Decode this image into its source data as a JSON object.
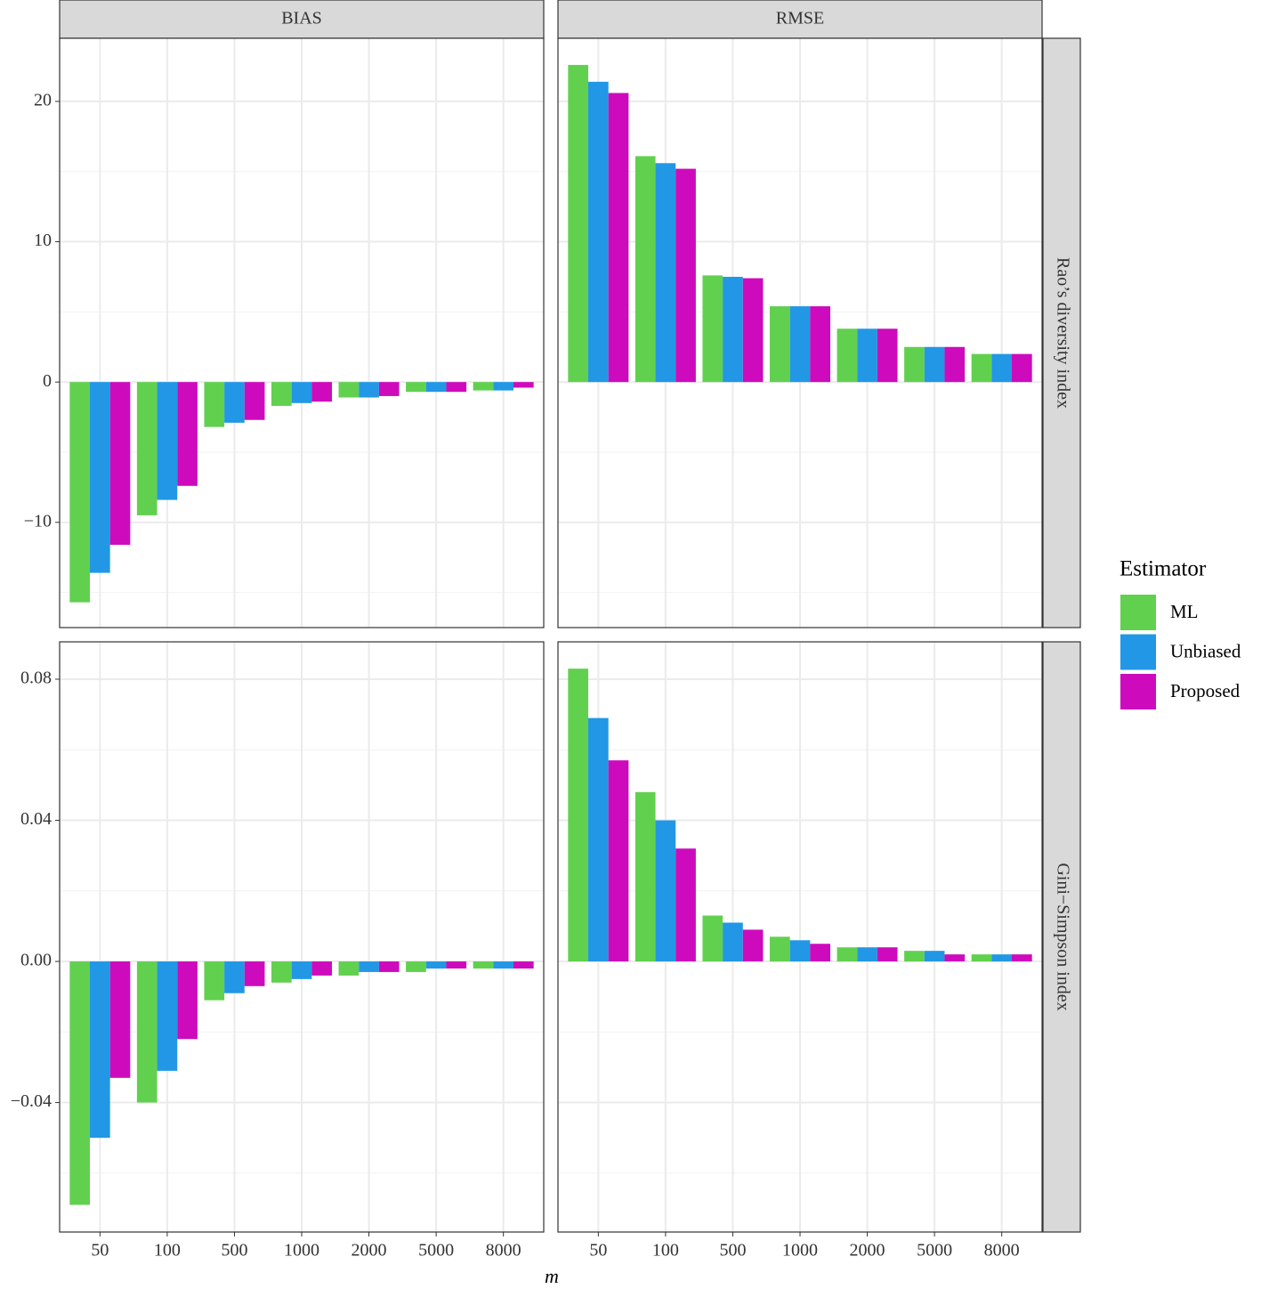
{
  "chart_data": {
    "type": "bar",
    "x_label": "m",
    "legend_title": "Estimator",
    "facet_columns": [
      "BIAS",
      "RMSE"
    ],
    "categories": [
      "50",
      "100",
      "500",
      "1000",
      "2000",
      "5000",
      "8000"
    ],
    "series": [
      {
        "name": "ML",
        "color": "#61d04f"
      },
      {
        "name": "Unbiased",
        "color": "#2297e6"
      },
      {
        "name": "Proposed",
        "color": "#cd0bbc"
      }
    ],
    "grid": true,
    "rows": [
      {
        "label": "Rao’s diversity index",
        "ylim": [
          -17.5,
          24.5
        ],
        "yticks": [
          {
            "value": -10,
            "label": "−10"
          },
          0,
          10,
          20
        ],
        "values": [
          [
            [
              -15.7,
              -9.5,
              -3.2,
              -1.7,
              -1.1,
              -0.7,
              -0.6
            ],
            [
              -13.6,
              -8.4,
              -2.9,
              -1.5,
              -1.1,
              -0.7,
              -0.6
            ],
            [
              -11.6,
              -7.4,
              -2.7,
              -1.4,
              -1.0,
              -0.7,
              -0.4
            ]
          ],
          [
            [
              22.6,
              16.1,
              7.6,
              5.4,
              3.8,
              2.5,
              2.0
            ],
            [
              21.4,
              15.6,
              7.5,
              5.4,
              3.8,
              2.5,
              2.0
            ],
            [
              20.6,
              15.2,
              7.4,
              5.4,
              3.8,
              2.5,
              2.0
            ]
          ]
        ]
      },
      {
        "label": "Gini−Simpson index",
        "ylim": [
          -0.0767,
          0.0906
        ],
        "yticks": [
          {
            "value": -0.04,
            "label": "−0.04"
          },
          {
            "value": 0,
            "label": "0.00"
          },
          0.04,
          0.08
        ],
        "values": [
          [
            [
              -0.069,
              -0.04,
              -0.011,
              -0.006,
              -0.004,
              -0.003,
              -0.002
            ],
            [
              -0.05,
              -0.031,
              -0.009,
              -0.005,
              -0.003,
              -0.002,
              -0.002
            ],
            [
              -0.033,
              -0.022,
              -0.007,
              -0.004,
              -0.003,
              -0.002,
              -0.002
            ]
          ],
          [
            [
              0.083,
              0.048,
              0.013,
              0.007,
              0.004,
              0.003,
              0.002
            ],
            [
              0.069,
              0.04,
              0.011,
              0.006,
              0.004,
              0.003,
              0.002
            ],
            [
              0.057,
              0.032,
              0.009,
              0.005,
              0.004,
              0.002,
              0.002
            ]
          ]
        ]
      }
    ]
  }
}
